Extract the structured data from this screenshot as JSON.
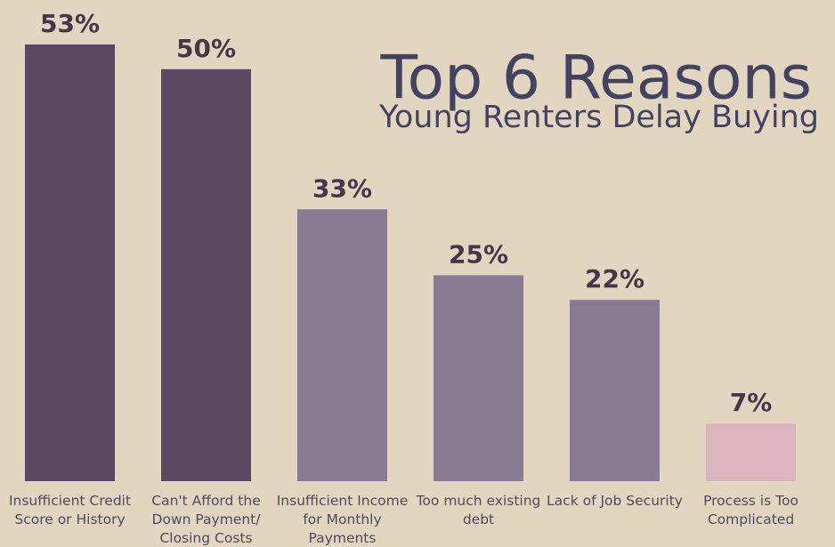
{
  "chart_data": {
    "type": "bar",
    "title": "Top 6 Reasons",
    "subtitle": "Young Renters Delay Buying",
    "categories": [
      "Insufficient Credit Score or History",
      "Can't Afford the Down Payment/ Closing Costs",
      "Insufficient Income for Monthly Payments",
      "Too much existing debt",
      "Lack of Job Security",
      "Process is Too Complicated"
    ],
    "values": [
      53,
      50,
      33,
      25,
      22,
      7
    ],
    "value_labels": [
      "53%",
      "50%",
      "33%",
      "25%",
      "22%",
      "7%"
    ],
    "colors": [
      "#5b4862",
      "#5b4862",
      "#8a7b94",
      "#8a7b94",
      "#8a7b94",
      "#dcb4c0"
    ]
  }
}
